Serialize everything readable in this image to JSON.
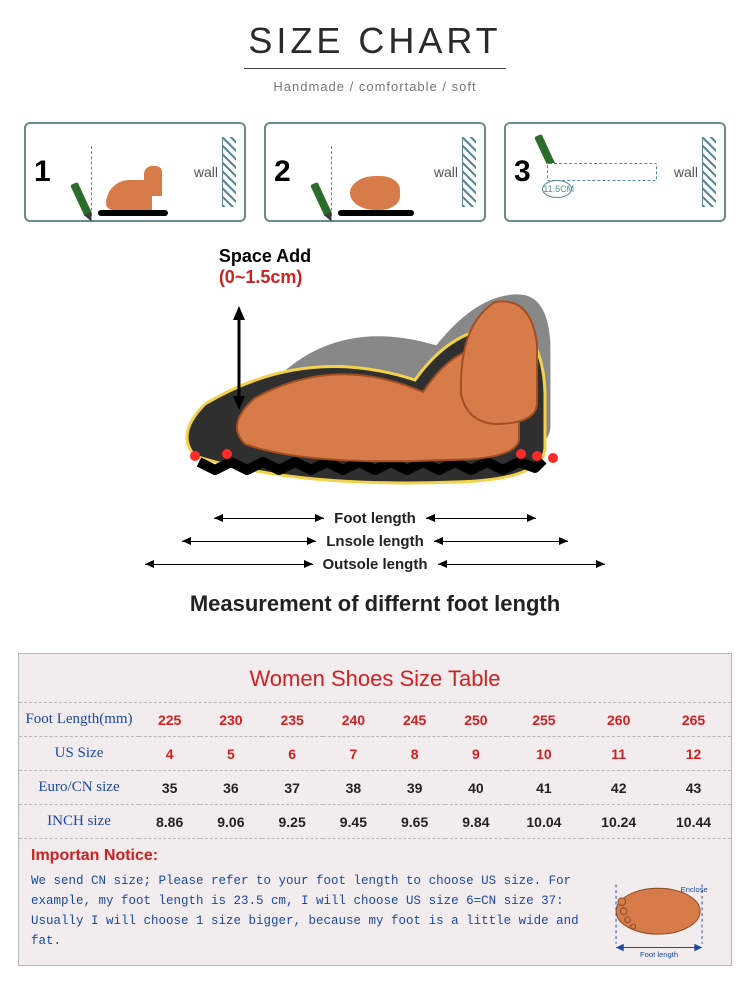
{
  "header": {
    "title": "SIZE CHART",
    "subtitle": "Handmade / comfortable / soft",
    "title_fontsize": 36,
    "subtitle_fontsize": 13,
    "title_color": "#2a2a2a",
    "subtitle_color": "#777777"
  },
  "steps": {
    "border_color": "#6b8a8a",
    "wall_label": "wall",
    "panels": [
      {
        "num": "1",
        "type": "foot-side",
        "wall": "wall"
      },
      {
        "num": "2",
        "type": "foot-top",
        "wall": "wall"
      },
      {
        "num": "3",
        "type": "ruler",
        "wall": "wall",
        "ruler_label": "11.5CM"
      }
    ]
  },
  "diagram": {
    "space_label": "Space Add",
    "space_range": "(0~1.5cm)",
    "space_label_color": "#000000",
    "space_range_color": "#d02020",
    "foot_fill": "#d87b4a",
    "foot_stroke": "#a34f22",
    "shoe_fill": "#3a3a3a",
    "shoe_outline": "#f2d24a",
    "dot_color": "#ff2a2a",
    "dims": [
      {
        "label": "Foot length",
        "width_pct": 70
      },
      {
        "label": "Lnsole length",
        "width_pct": 84
      },
      {
        "label": "Outsole length",
        "width_pct": 100
      }
    ],
    "caption": "Measurement of differnt foot length",
    "caption_fontsize": 22
  },
  "table": {
    "title": "Women Shoes Size Table",
    "title_color": "#d02020",
    "header_color": "#1a4aa0",
    "background_color": "#f3ecee",
    "border_color": "#b7b7b7",
    "columns_count": 9,
    "rows": [
      {
        "label": "Foot Length(mm)",
        "style": "red",
        "values": [
          "225",
          "230",
          "235",
          "240",
          "245",
          "250",
          "255",
          "260",
          "265"
        ]
      },
      {
        "label": "US Size",
        "style": "red",
        "values": [
          "4",
          "5",
          "6",
          "7",
          "8",
          "9",
          "10",
          "11",
          "12"
        ]
      },
      {
        "label": "Euro/CN size",
        "style": "black",
        "values": [
          "35",
          "36",
          "37",
          "38",
          "39",
          "40",
          "41",
          "42",
          "43"
        ]
      },
      {
        "label": "INCH size",
        "style": "black",
        "values": [
          "8.86",
          "9.06",
          "9.25",
          "9.45",
          "9.65",
          "9.84",
          "10.04",
          "10.24",
          "10.44"
        ]
      }
    ]
  },
  "notice": {
    "title": "Importan Notice:",
    "body": "We send CN size; Please refer to your foot length to choose US size. For example, my foot length is 23.5 cm, I will choose US size 6=CN size 37: Usually I will choose 1 size bigger, because my foot is a little wide and fat.",
    "title_color": "#d02020",
    "body_color": "#1a4aa0",
    "mini_labels": {
      "enclose": "Enclose",
      "foot_length": "Foot length"
    }
  }
}
